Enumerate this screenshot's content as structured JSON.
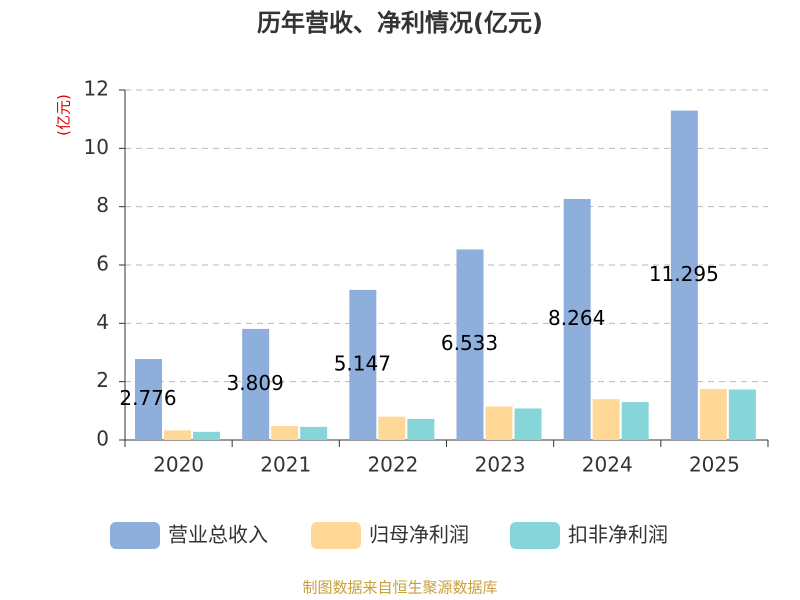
{
  "chart_data": {
    "type": "bar",
    "title": "历年营收、净利情况(亿元)",
    "y_label": "(亿元)",
    "source": "制图数据来自恒生聚源数据库",
    "categories": [
      "2020",
      "2021",
      "2022",
      "2023",
      "2024",
      "2025"
    ],
    "series": [
      {
        "name": "营业总收入",
        "color": "#8eaedb",
        "values": [
          2.776,
          3.809,
          5.147,
          6.533,
          8.264,
          11.295
        ],
        "show_labels": true
      },
      {
        "name": "归母净利润",
        "color": "#ffd797",
        "values": [
          0.33,
          0.48,
          0.8,
          1.15,
          1.4,
          1.75
        ]
      },
      {
        "name": "扣非净利润",
        "color": "#86d5d8",
        "values": [
          0.28,
          0.45,
          0.72,
          1.08,
          1.3,
          1.73
        ]
      }
    ],
    "ylim": [
      0,
      12
    ],
    "yticks": [
      0,
      2,
      4,
      6,
      8,
      10,
      12
    ],
    "grid": true
  }
}
